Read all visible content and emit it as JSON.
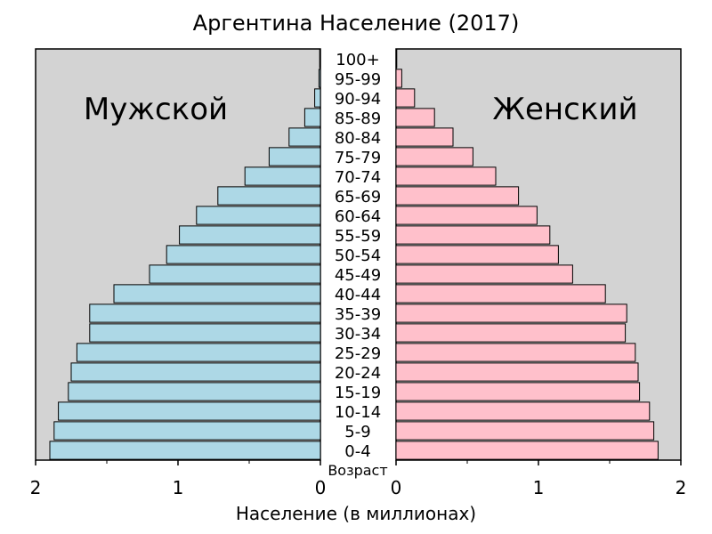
{
  "chart_data": {
    "type": "bar",
    "title": "Аргентина Население (2017)",
    "left_panel_label": "Мужской",
    "right_panel_label": "Женский",
    "center_axis_label": "Возраст",
    "xlabel": "Население (в миллионах)",
    "categories": [
      "0-4",
      "5-9",
      "10-14",
      "15-19",
      "20-24",
      "25-29",
      "30-34",
      "35-39",
      "40-44",
      "45-49",
      "50-54",
      "55-59",
      "60-64",
      "65-69",
      "70-74",
      "75-79",
      "80-84",
      "85-89",
      "90-94",
      "95-99",
      "100+"
    ],
    "series": [
      {
        "name": "Мужской",
        "values": [
          1.9,
          1.87,
          1.84,
          1.77,
          1.75,
          1.71,
          1.62,
          1.62,
          1.45,
          1.2,
          1.08,
          0.99,
          0.87,
          0.72,
          0.53,
          0.36,
          0.22,
          0.11,
          0.04,
          0.01,
          0.0
        ],
        "color": "#add8e6"
      },
      {
        "name": "Женский",
        "values": [
          1.84,
          1.81,
          1.78,
          1.71,
          1.7,
          1.68,
          1.61,
          1.62,
          1.47,
          1.24,
          1.14,
          1.08,
          0.99,
          0.86,
          0.7,
          0.54,
          0.4,
          0.27,
          0.13,
          0.04,
          0.0
        ],
        "color": "#ffc0cb"
      }
    ],
    "xlim": [
      0,
      2
    ],
    "xticks": [
      "2",
      "1",
      "0",
      "0",
      "1",
      "2"
    ],
    "grid": false,
    "panel_background": "#d3d3d3"
  }
}
